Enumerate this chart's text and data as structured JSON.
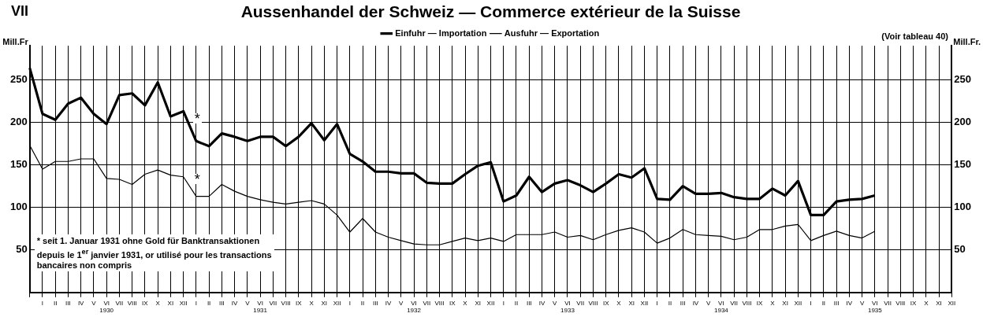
{
  "chart_data": {
    "type": "line",
    "title": "Aussenhandel der Schweiz — Commerce extérieur de la Suisse",
    "ylabel": "Mill.Fr",
    "y2label": "Mill.Fr.",
    "categories": [
      null,
      "I",
      "II",
      "III",
      "IV",
      "V",
      "VI\n1930",
      "VII",
      "VIII",
      "IX",
      "X",
      "XI",
      "XII",
      "I",
      "II",
      "III",
      "IV",
      "V",
      "VI\n1931",
      "VII",
      "VIII",
      "IX",
      "X",
      "XI",
      "XII",
      "I",
      "II",
      "III",
      "IV",
      "V",
      "VI\n1932",
      "VII",
      "VIII",
      "IX",
      "X",
      "XI",
      "XII",
      "I",
      "II",
      "III",
      "IV",
      "V",
      "VI\n1933",
      "VII",
      "VIII",
      "IX",
      "X",
      "XI",
      "XII",
      "I",
      "II",
      "III",
      "IV",
      "V",
      "VI\n1934",
      "VII",
      "VIII",
      "IX",
      "X",
      "XI",
      "XII",
      "I",
      "II",
      "III",
      "IV",
      "V",
      "VI\n1935",
      "VII",
      "VIII",
      "IX",
      "X",
      "XI",
      "XII"
    ],
    "series": [
      {
        "name": "Einfuhr — Importation",
        "color": "#000000",
        "values": [
          264,
          210,
          203,
          222,
          229,
          210,
          198,
          232,
          234,
          220,
          247,
          207,
          213,
          178,
          172,
          187,
          183,
          178,
          183,
          183,
          172,
          183,
          199,
          179,
          198,
          163,
          154,
          142,
          142,
          140,
          140,
          129,
          128,
          128,
          139,
          149,
          153,
          107,
          114,
          136,
          118,
          128,
          132,
          126,
          118,
          128,
          139,
          135,
          146,
          110,
          109,
          125,
          116,
          116,
          117,
          112,
          110,
          110,
          122,
          114,
          131,
          91,
          91,
          107,
          109,
          110,
          114,
          null,
          null,
          null,
          null,
          null,
          null
        ]
      },
      {
        "name": "Ausfuhr — Exportation",
        "color": "#000000",
        "values": [
          173,
          145,
          154,
          154,
          157,
          157,
          134,
          133,
          127,
          139,
          144,
          138,
          136,
          113,
          113,
          127,
          119,
          113,
          109,
          106,
          104,
          106,
          108,
          104,
          91,
          71,
          87,
          71,
          65,
          61,
          57,
          56,
          56,
          60,
          64,
          61,
          64,
          60,
          68,
          68,
          68,
          71,
          65,
          67,
          62,
          68,
          73,
          76,
          71,
          58,
          64,
          74,
          68,
          67,
          66,
          62,
          65,
          74,
          74,
          78,
          80,
          61,
          67,
          72,
          67,
          64,
          72,
          null,
          null,
          null,
          null,
          null,
          null
        ]
      }
    ],
    "ylim": [
      0,
      290
    ],
    "yticks": [
      50,
      100,
      150,
      200,
      250
    ],
    "y2lim": [
      0,
      290
    ],
    "y2ticks": [
      50,
      100,
      150,
      200,
      250
    ],
    "grid": true,
    "legend": "top",
    "marker": "none",
    "line_style": "solid",
    "annotations": [
      "VII",
      "(Voir tableau 40)",
      "*",
      "*",
      "* seit 1. Januar 1931 ohne Gold für Banktransaktionen\ndepuis le 1$^{er}$ janvier 1931, or utilisé pour les transactions\nbancaires non compris"
    ]
  }
}
